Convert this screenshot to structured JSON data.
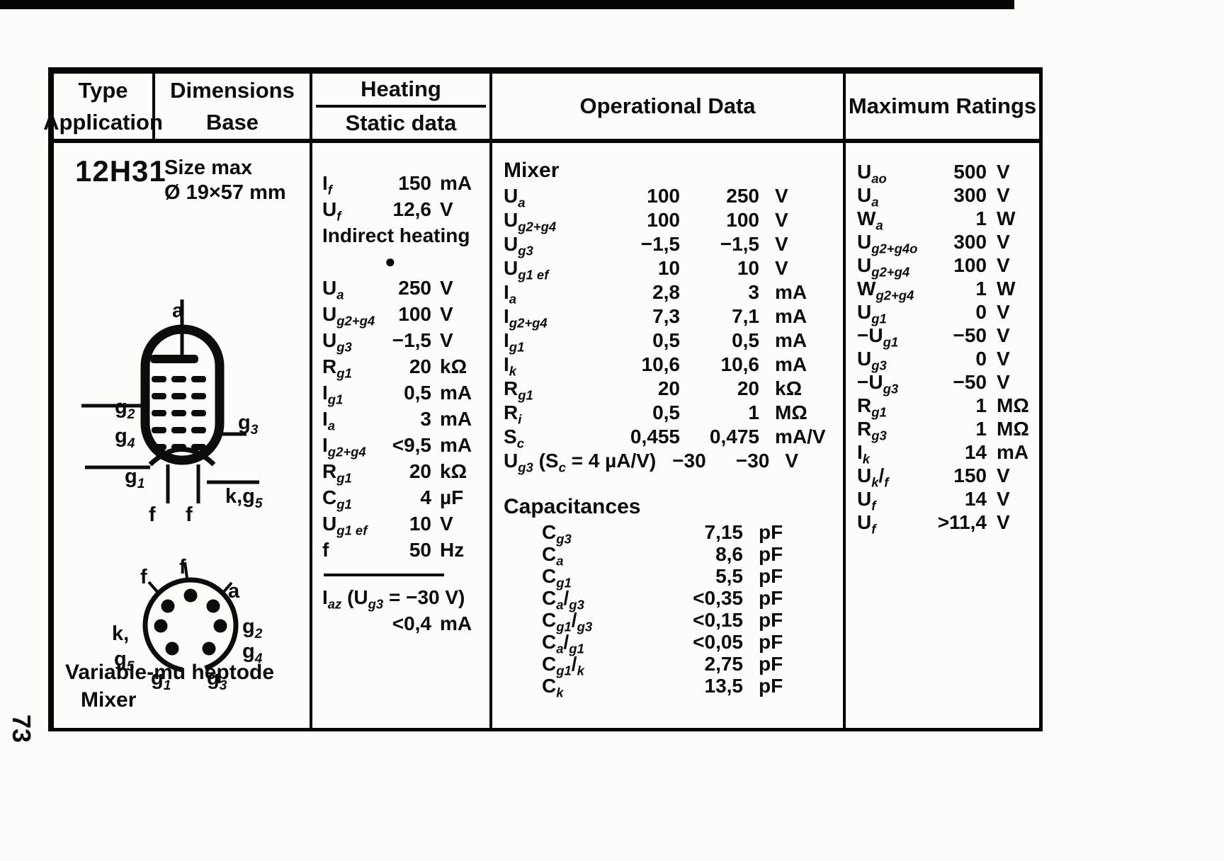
{
  "page": {
    "number": "73"
  },
  "header": {
    "col1_line1": "Type",
    "col1_line2": "Application",
    "col2_line1": "Dimensions",
    "col2_line2": "Base",
    "col3_line1": "Heating",
    "col3_line2": "Static data",
    "col4": "Operational Data",
    "col5": "Maximum Ratings"
  },
  "tube": {
    "type": "12H31",
    "size_label": "Size max",
    "size_value": "Ø 19×57 mm",
    "description_line1": "Variable-mu heptode",
    "description_line2": "Mixer",
    "symbol_labels": {
      "anode": "a",
      "g2": "g_{2}",
      "g4": "g_{4}",
      "g3": "g_{3}",
      "g1": "g_{1}",
      "kg5": "k,g_{5}",
      "f1": "f",
      "f2": "f"
    },
    "base_labels": {
      "f_top": "f",
      "f_left": "f",
      "a": "a",
      "g2": "g_{2}",
      "g4": "g_{4}",
      "g3": "g_{3}",
      "g1": "g_{1}",
      "g5": "g_{5}",
      "k": "k,"
    }
  },
  "heating": {
    "rows": [
      {
        "l": "I_{f}",
        "v": "150",
        "u": "mA"
      },
      {
        "l": "U_{f}",
        "v": "12,6",
        "u": "V"
      },
      {
        "note": "Indirect heating"
      },
      {
        "dot": "●"
      },
      {
        "l": "U_{a}",
        "v": "250",
        "u": "V"
      },
      {
        "l": "U_{g2+g4}",
        "v": "100",
        "u": "V"
      },
      {
        "l": "U_{g3}",
        "v": "−1,5",
        "u": "V"
      },
      {
        "l": "R_{g1}",
        "v": "20",
        "u": "kΩ"
      },
      {
        "l": "I_{g1}",
        "v": "0,5",
        "u": "mA"
      },
      {
        "l": "I_{a}",
        "v": "3",
        "u": "mA"
      },
      {
        "l": "I_{g2+g4}",
        "v": "<9,5",
        "u": "mA"
      },
      {
        "l": "R_{g1}",
        "v": "20",
        "u": "kΩ"
      },
      {
        "l": "C_{g1}",
        "v": "4",
        "u": "µF"
      },
      {
        "l": "U_{g1 ef}",
        "v": "10",
        "u": "V"
      },
      {
        "l": "f",
        "v": "50",
        "u": "Hz"
      },
      {
        "rule": true
      },
      {
        "l": "I_{az} (U_{g3} = −30 V)"
      },
      {
        "v": "<0,4",
        "u": "mA"
      }
    ]
  },
  "operational": {
    "section1_title": "Mixer",
    "rows": [
      {
        "l": "U_{a}",
        "v1": "100",
        "v2": "250",
        "u": "V"
      },
      {
        "l": "U_{g2+g4}",
        "v1": "100",
        "v2": "100",
        "u": "V"
      },
      {
        "l": "U_{g3}",
        "v1": "−1,5",
        "v2": "−1,5",
        "u": "V"
      },
      {
        "l": "U_{g1 ef}",
        "v1": "10",
        "v2": "10",
        "u": "V"
      },
      {
        "l": "I_{a}",
        "v1": "2,8",
        "v2": "3",
        "u": "mA"
      },
      {
        "l": "I_{g2+g4}",
        "v1": "7,3",
        "v2": "7,1",
        "u": "mA"
      },
      {
        "l": "I_{g1}",
        "v1": "0,5",
        "v2": "0,5",
        "u": "mA"
      },
      {
        "l": "I_{k}",
        "v1": "10,6",
        "v2": "10,6",
        "u": "mA"
      },
      {
        "l": "R_{g1}",
        "v1": "20",
        "v2": "20",
        "u": "kΩ"
      },
      {
        "l": "R_{i}",
        "v1": "0,5",
        "v2": "1",
        "u": "MΩ"
      },
      {
        "l": "S_{c}",
        "v1": "0,455",
        "v2": "0,475",
        "u": "mA/V"
      },
      {
        "l": "U_{g3} (S_{c} = 4 µA/V)",
        "v1": "−30",
        "v2": "−30",
        "u": "V"
      }
    ],
    "section2_title": "Capacitances",
    "cap_rows": [
      {
        "l": "C_{g3}",
        "v": "7,15",
        "u": "pF"
      },
      {
        "l": "C_{a}",
        "v": "8,6",
        "u": "pF"
      },
      {
        "l": "C_{g1}",
        "v": "5,5",
        "u": "pF"
      },
      {
        "l": "C_{a}/_{g3}",
        "v": "<0,35",
        "u": "pF"
      },
      {
        "l": "C_{g1}/_{g3}",
        "v": "<0,15",
        "u": "pF"
      },
      {
        "l": "C_{a}/_{g1}",
        "v": "<0,05",
        "u": "pF"
      },
      {
        "l": "C_{g1}/_{k}",
        "v": "2,75",
        "u": "pF"
      },
      {
        "l": "C_{k}",
        "v": "13,5",
        "u": "pF"
      }
    ]
  },
  "max_ratings": {
    "rows": [
      {
        "l": "U_{ao}",
        "v": "500",
        "u": "V"
      },
      {
        "l": "U_{a}",
        "v": "300",
        "u": "V"
      },
      {
        "l": "W_{a}",
        "v": "1",
        "u": "W"
      },
      {
        "l": "U_{g2+g4o}",
        "v": "300",
        "u": "V"
      },
      {
        "l": "U_{g2+g4}",
        "v": "100",
        "u": "V"
      },
      {
        "l": "W_{g2+g4}",
        "v": "1",
        "u": "W"
      },
      {
        "l": "U_{g1}",
        "v": "0",
        "u": "V"
      },
      {
        "l": "−U_{g1}",
        "v": "−50",
        "u": "V"
      },
      {
        "l": "U_{g3}",
        "v": "0",
        "u": "V"
      },
      {
        "l": "−U_{g3}",
        "v": "−50",
        "u": "V"
      },
      {
        "l": "R_{g1}",
        "v": "1",
        "u": "MΩ"
      },
      {
        "l": "R_{g3}",
        "v": "1",
        "u": "MΩ"
      },
      {
        "l": "I_{k}",
        "v": "14",
        "u": "mA"
      },
      {
        "l": "U_{k}/_{f}",
        "v": "150",
        "u": "V"
      },
      {
        "l": "U_{f}",
        "v": "14",
        "u": "V"
      },
      {
        "l": "U_{f}",
        "v": ">11,4",
        "u": "V"
      }
    ]
  }
}
